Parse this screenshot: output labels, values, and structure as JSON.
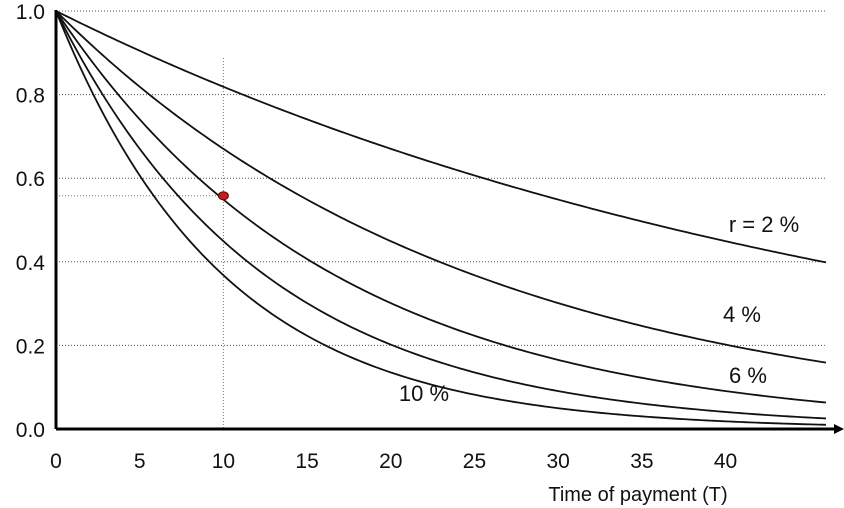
{
  "chart_data": {
    "type": "line",
    "title": "",
    "xlabel": "Time of payment (T)",
    "ylabel": "",
    "xlim": [
      0,
      46
    ],
    "ylim": [
      0,
      1.0
    ],
    "x_ticks": [
      "0",
      "5",
      "10",
      "15",
      "20",
      "25",
      "30",
      "35",
      "40"
    ],
    "y_ticks": [
      "0.0",
      "0.2",
      "0.4",
      "0.6",
      "0.8",
      "1.0"
    ],
    "grid": "horizontal dotted",
    "x": [
      0,
      5,
      10,
      15,
      20,
      25,
      30,
      35,
      40,
      46
    ],
    "series": [
      {
        "name": "r = 2 %",
        "rate": 0.02,
        "values": [
          1.0,
          0.9057,
          0.8203,
          0.743,
          0.673,
          0.6095,
          0.5521,
          0.5,
          0.4529,
          0.4022
        ]
      },
      {
        "name": "4 %",
        "rate": 0.04,
        "values": [
          1.0,
          0.8219,
          0.6756,
          0.5553,
          0.4564,
          0.3751,
          0.3083,
          0.2534,
          0.2083,
          0.1652
        ]
      },
      {
        "name": "6 %",
        "rate": 0.06,
        "values": [
          1.0,
          0.7473,
          0.5584,
          0.4173,
          0.3118,
          0.233,
          0.1741,
          0.1301,
          0.0972,
          0.0686
        ]
      },
      {
        "name": "",
        "rate": 0.08,
        "values": [
          1.0,
          0.6806,
          0.4632,
          0.3152,
          0.2145,
          0.146,
          0.0994,
          0.0676,
          0.046,
          0.029
        ]
      },
      {
        "name": "10 %",
        "rate": 0.1,
        "values": [
          1.0,
          0.6209,
          0.3855,
          0.2394,
          0.1486,
          0.0923,
          0.0573,
          0.0356,
          0.0221,
          0.0124
        ]
      }
    ],
    "highlight_point": {
      "x": 10,
      "y": 0.558,
      "color": "#cc1a1a"
    },
    "reference_line_x": 10,
    "reference_line_y": 0.558
  }
}
